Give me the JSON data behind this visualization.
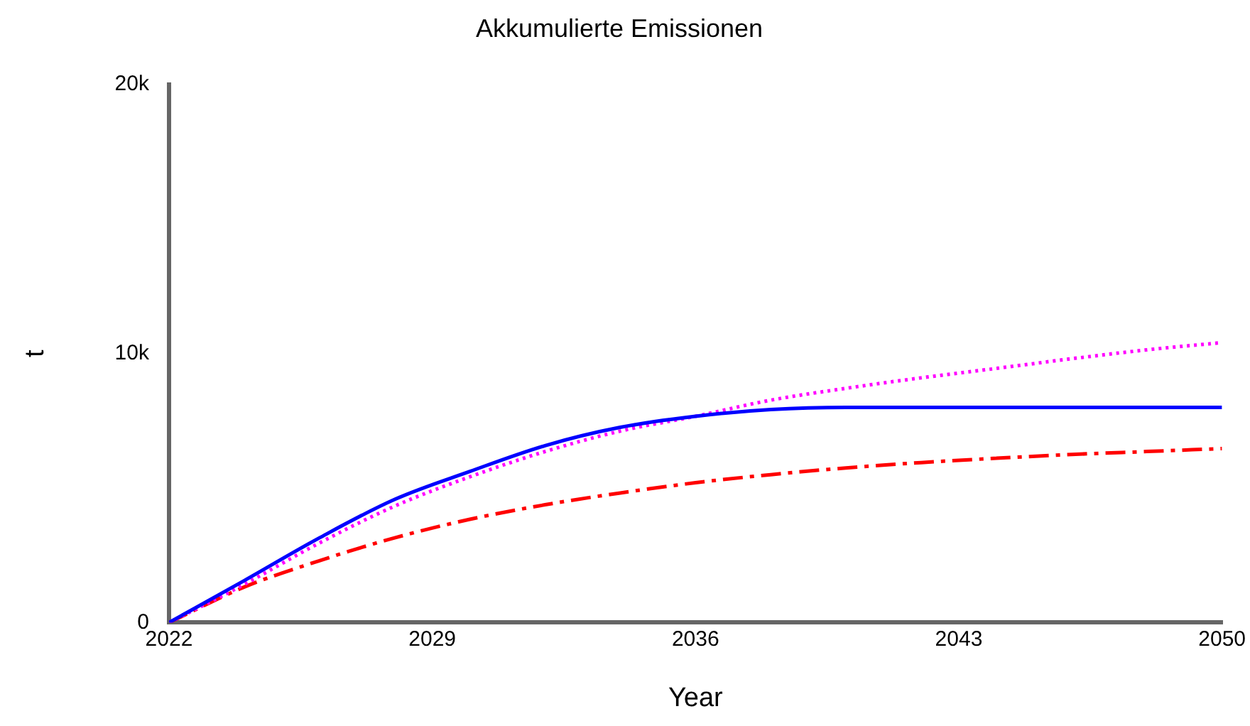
{
  "chart_data": {
    "type": "line",
    "title": "Akkumulierte Emissionen",
    "xlabel": "Year",
    "ylabel": "t",
    "x": [
      2022,
      2024,
      2026,
      2028,
      2030,
      2032,
      2034,
      2036,
      2038,
      2040,
      2042,
      2044,
      2046,
      2048,
      2050
    ],
    "xlim": [
      2022,
      2050
    ],
    "xticks": [
      2022,
      2029,
      2036,
      2043,
      2050
    ],
    "ylim": [
      0,
      20000
    ],
    "yticks": [
      0,
      {
        "value": 10000,
        "label": "10k"
      },
      {
        "value": 20000,
        "label": "20k"
      }
    ],
    "grid": false,
    "legend": false,
    "marker": "none",
    "series": [
      {
        "color": "#0000ff",
        "line_style": "solid",
        "values": [
          0,
          1560,
          3150,
          4580,
          5620,
          6580,
          7260,
          7670,
          7920,
          8000,
          8000,
          8000,
          8000,
          8000,
          8000
        ]
      },
      {
        "color": "#ff00ff",
        "line_style": "dotted",
        "values": [
          0,
          1420,
          2960,
          4330,
          5420,
          6360,
          7120,
          7670,
          8270,
          8710,
          9100,
          9450,
          9810,
          10140,
          10410
        ]
      },
      {
        "color": "#ff0000",
        "line_style": "dashed",
        "values": [
          0,
          1320,
          2300,
          3150,
          3840,
          4380,
          4820,
          5200,
          5500,
          5750,
          5950,
          6110,
          6250,
          6360,
          6470
        ]
      }
    ]
  }
}
